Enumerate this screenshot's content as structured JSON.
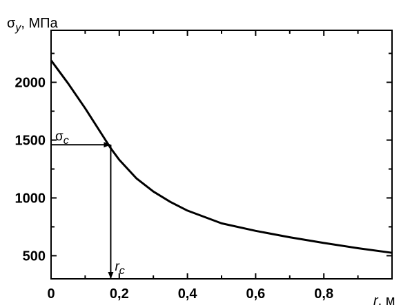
{
  "chart_data": {
    "type": "line",
    "title": "",
    "ylabel": {
      "symbol": "σ",
      "subscript": "y",
      "unit": ", МПа"
    },
    "xlabel": {
      "symbol": "r",
      "unit": ", м"
    },
    "xlim": [
      0,
      1.0
    ],
    "ylim": [
      300,
      2450
    ],
    "grid": false,
    "x_ticks": [
      {
        "value": 0,
        "label": "0"
      },
      {
        "value": 0.2,
        "label": "0,2"
      },
      {
        "value": 0.4,
        "label": "0,4"
      },
      {
        "value": 0.6,
        "label": "0,6"
      },
      {
        "value": 0.8,
        "label": "0,8"
      }
    ],
    "y_ticks": [
      {
        "value": 500,
        "label": "500"
      },
      {
        "value": 1000,
        "label": "1000"
      },
      {
        "value": 1500,
        "label": "1500"
      },
      {
        "value": 2000,
        "label": "2000"
      }
    ],
    "series": [
      {
        "x": [
          0,
          0.05,
          0.1,
          0.15,
          0.175,
          0.2,
          0.25,
          0.3,
          0.35,
          0.4,
          0.5,
          0.6,
          0.7,
          0.8,
          0.9,
          1.0
        ],
        "y": [
          2190,
          1990,
          1775,
          1545,
          1430,
          1330,
          1170,
          1055,
          965,
          890,
          780,
          715,
          660,
          610,
          565,
          525
        ]
      }
    ],
    "annotations": {
      "sigma_c": {
        "symbol": "σ",
        "subscript": "c",
        "value": 1460
      },
      "r_c": {
        "symbol": "r",
        "subscript": "c",
        "value": 0.175
      }
    }
  }
}
